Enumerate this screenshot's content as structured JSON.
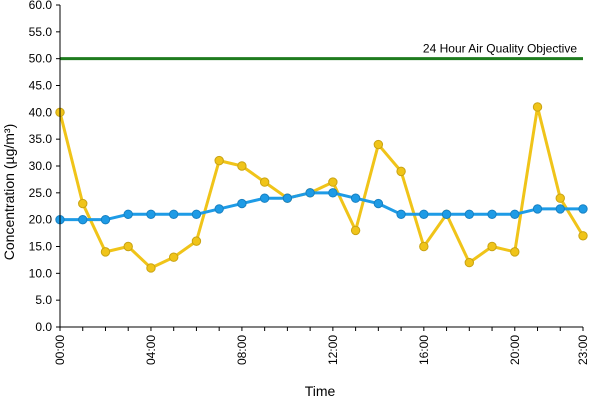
{
  "chart_data": {
    "type": "line",
    "xlabel": "Time",
    "ylabel": "Concentration (µg/m³)",
    "ylim": [
      0,
      60
    ],
    "y_ticks": [
      "0.0",
      "5.0",
      "10.0",
      "15.0",
      "20.0",
      "25.0",
      "30.0",
      "35.0",
      "40.0",
      "45.0",
      "50.0",
      "55.0",
      "60.0"
    ],
    "x_hours": [
      0,
      1,
      2,
      3,
      4,
      5,
      6,
      7,
      8,
      9,
      10,
      11,
      12,
      13,
      14,
      15,
      16,
      17,
      18,
      19,
      20,
      21,
      22,
      23
    ],
    "x_tick_labels": [
      {
        "hour": 0,
        "label": "00:00"
      },
      {
        "hour": 4,
        "label": "04:00"
      },
      {
        "hour": 8,
        "label": "08:00"
      },
      {
        "hour": 12,
        "label": "12:00"
      },
      {
        "hour": 16,
        "label": "16:00"
      },
      {
        "hour": 20,
        "label": "20:00"
      },
      {
        "hour": 23,
        "label": "23:00"
      }
    ],
    "grid": false,
    "legend": "none",
    "series": [
      {
        "color": "#F0C419",
        "values": [
          40,
          23,
          14,
          15,
          11,
          13,
          16,
          31,
          30,
          27,
          24,
          25,
          27,
          18,
          34,
          29,
          15,
          21,
          12,
          15,
          14,
          41,
          24,
          17
        ]
      },
      {
        "color": "#1E9BE6",
        "values": [
          20,
          20,
          20,
          21,
          21,
          21,
          21,
          22,
          23,
          24,
          24,
          25,
          25,
          24,
          23,
          21,
          21,
          21,
          21,
          21,
          21,
          22,
          22,
          22
        ]
      }
    ],
    "reference_line": {
      "value": 50,
      "label": "24 Hour Air Quality Objective",
      "color": "#1E7B1E"
    }
  }
}
